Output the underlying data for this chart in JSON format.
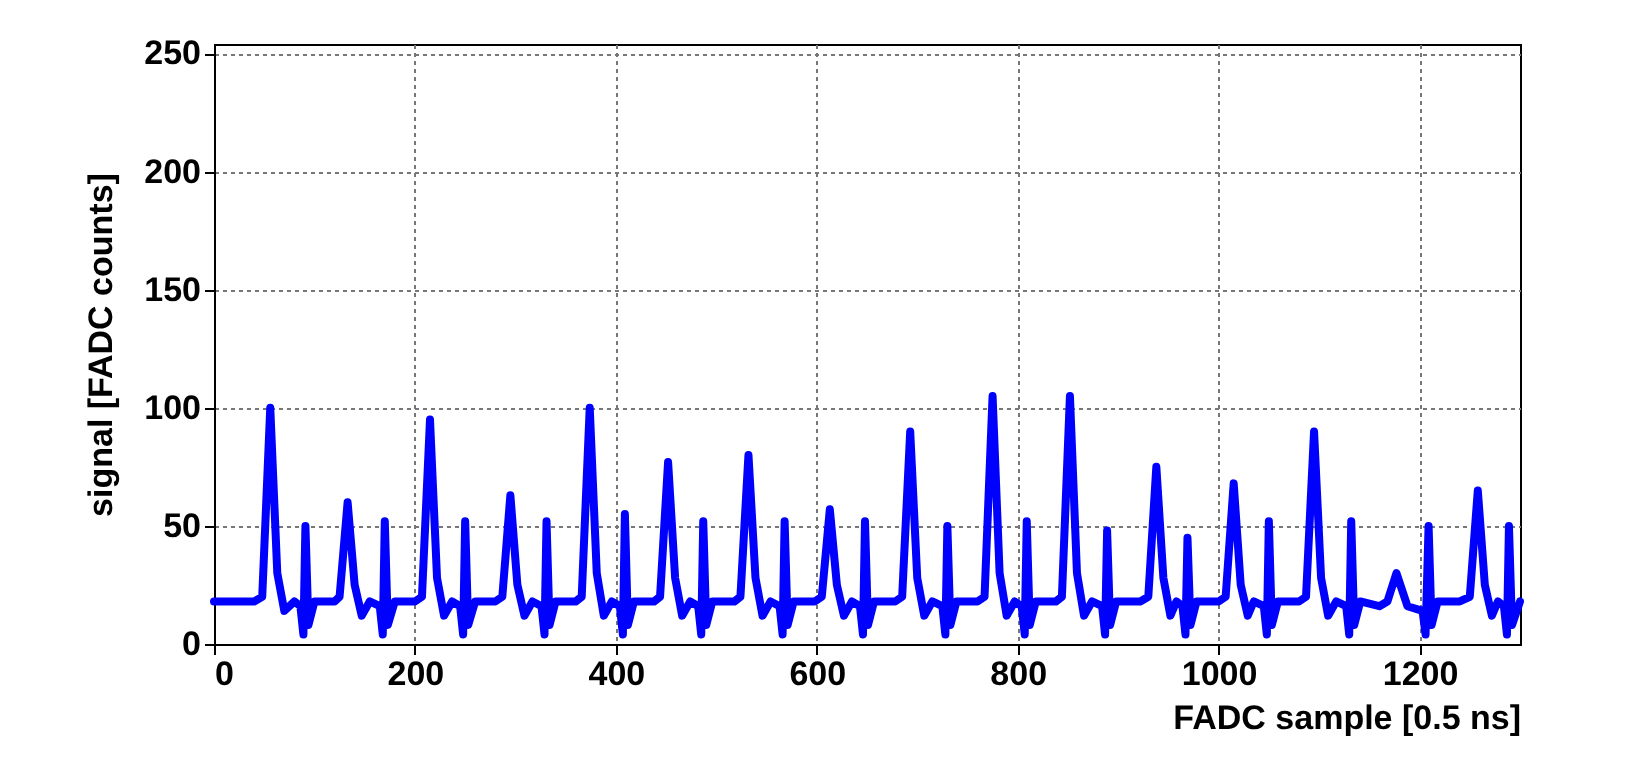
{
  "chart_data": {
    "type": "line",
    "xlabel": "FADC sample [0.5 ns]",
    "ylabel": "signal [FADC counts]",
    "xlim": [
      0,
      1300
    ],
    "xticks": [
      0,
      200,
      400,
      600,
      800,
      1000,
      1200
    ],
    "ylim": [
      0,
      254
    ],
    "yticks": [
      0,
      50,
      100,
      150,
      200,
      250
    ],
    "grid": true,
    "legend": false,
    "marker": "none",
    "line_style": "solid",
    "x": [
      0,
      40,
      48,
      56,
      63,
      70,
      80,
      86,
      89,
      91,
      94,
      100,
      120,
      125,
      133,
      140,
      147,
      155,
      165,
      168,
      170,
      173,
      180,
      200,
      207,
      215,
      222,
      229,
      237,
      245,
      248,
      250,
      253,
      260,
      280,
      287,
      295,
      302,
      309,
      317,
      326,
      329,
      331,
      334,
      340,
      360,
      366,
      374,
      381,
      388,
      396,
      404,
      407,
      409,
      412,
      418,
      438,
      444,
      452,
      459,
      466,
      474,
      482,
      485,
      487,
      490,
      496,
      518,
      524,
      532,
      539,
      546,
      554,
      563,
      566,
      568,
      571,
      577,
      598,
      605,
      613,
      620,
      627,
      635,
      643,
      646,
      648,
      651,
      657,
      678,
      685,
      693,
      700,
      707,
      715,
      725,
      728,
      730,
      733,
      739,
      760,
      767,
      775,
      782,
      789,
      797,
      804,
      807,
      809,
      812,
      818,
      838,
      844,
      852,
      859,
      866,
      874,
      884,
      887,
      889,
      892,
      898,
      922,
      930,
      938,
      945,
      952,
      958,
      964,
      967,
      969,
      972,
      978,
      1000,
      1007,
      1015,
      1022,
      1029,
      1035,
      1045,
      1048,
      1050,
      1053,
      1059,
      1080,
      1087,
      1095,
      1102,
      1109,
      1117,
      1127,
      1130,
      1132,
      1135,
      1141,
      1160,
      1168,
      1177,
      1188,
      1203,
      1206,
      1209,
      1212,
      1218,
      1240,
      1250,
      1258,
      1265,
      1272,
      1278,
      1284,
      1287,
      1289,
      1292,
      1300
    ],
    "series": [
      {
        "color": "#0000ff",
        "values": [
          18,
          18,
          20,
          100,
          30,
          14,
          18,
          16,
          4,
          50,
          8,
          18,
          18,
          20,
          60,
          25,
          12,
          18,
          16,
          4,
          52,
          8,
          18,
          18,
          20,
          95,
          28,
          12,
          18,
          16,
          4,
          52,
          8,
          18,
          18,
          20,
          63,
          25,
          12,
          18,
          16,
          4,
          52,
          8,
          18,
          18,
          20,
          100,
          30,
          12,
          18,
          16,
          4,
          55,
          8,
          18,
          18,
          20,
          77,
          28,
          12,
          18,
          16,
          4,
          52,
          8,
          18,
          18,
          20,
          80,
          28,
          12,
          18,
          16,
          4,
          52,
          8,
          18,
          18,
          20,
          57,
          25,
          12,
          18,
          16,
          4,
          52,
          8,
          18,
          18,
          20,
          90,
          28,
          12,
          18,
          16,
          4,
          50,
          8,
          18,
          18,
          20,
          105,
          30,
          12,
          18,
          16,
          4,
          52,
          8,
          18,
          18,
          20,
          105,
          30,
          12,
          18,
          16,
          4,
          48,
          8,
          18,
          18,
          20,
          75,
          28,
          12,
          18,
          16,
          4,
          45,
          8,
          18,
          18,
          20,
          68,
          25,
          12,
          18,
          16,
          4,
          52,
          8,
          18,
          18,
          20,
          90,
          28,
          12,
          18,
          16,
          4,
          52,
          8,
          18,
          16,
          18,
          30,
          16,
          14,
          4,
          50,
          8,
          18,
          18,
          20,
          65,
          25,
          12,
          18,
          16,
          4,
          50,
          8,
          18
        ]
      }
    ]
  }
}
